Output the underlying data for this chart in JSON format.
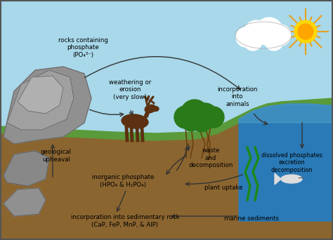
{
  "bg_sky_color": "#a8d8ea",
  "bg_ground_color": "#8B6530",
  "bg_grass_color": "#5a9a3a",
  "bg_water_color": "#2a7ab8",
  "bg_water_light": "#5aabcc",
  "border_color": "#555555",
  "labels": {
    "rocks": "rocks containing\nphosphate\n(PO₄³⁻)",
    "weathering": "weathering or\nerosion\n(very slow)",
    "incorporation_animals": "incorporation\ninto\nanimals",
    "geological": "geological\nupheaval",
    "inorganic": "inorganic phosphate\n(HPO₄ & H₂PO₄)",
    "waste": "waste\nand\ndecomposition",
    "plant_uptake": "plant uptake",
    "dissolved": "dissolved phosphates\nexcretion\ndecomposition",
    "sedimentary": "incorporation into sedimentary rock\n(CaP, FeP, MnP, & AlP)",
    "marine_sediments": "marine sediments"
  }
}
